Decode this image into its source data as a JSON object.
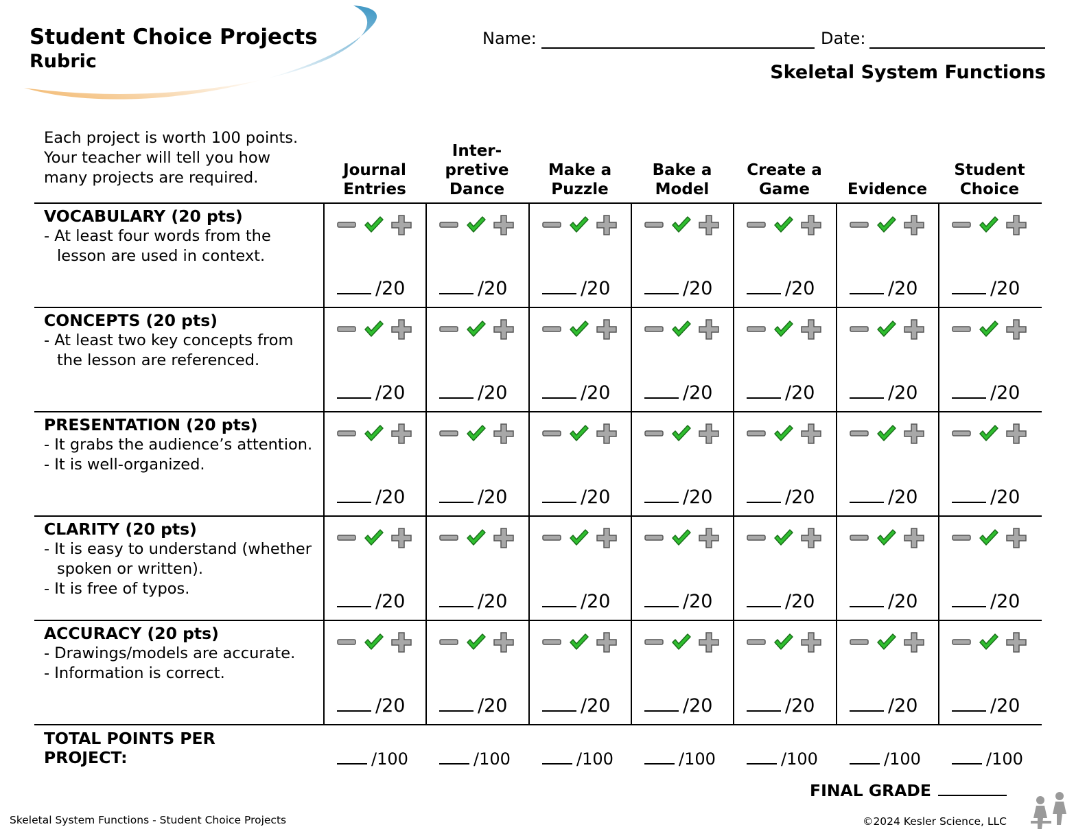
{
  "header": {
    "title": "Student Choice Projects",
    "subtitle": "Rubric",
    "name_label": "Name:",
    "date_label": "Date:",
    "topic": "Skeletal System Functions"
  },
  "instructions": "Each project is worth 100 points. Your teacher will tell you how many projects are required.",
  "columns": [
    "Journal\nEntries",
    "Inter-\npretive\nDance",
    "Make a\nPuzzle",
    "Bake a\nModel",
    "Create a\nGame",
    "Evidence",
    "Student\nChoice"
  ],
  "criteria": [
    {
      "title": "VOCABULARY (20 pts)",
      "lines": [
        "- At least four words from the lesson are used in context."
      ]
    },
    {
      "title": "CONCEPTS (20 pts)",
      "lines": [
        "- At least two key concepts from the lesson are referenced."
      ]
    },
    {
      "title": "PRESENTATION (20 pts)",
      "lines": [
        "-  It grabs the audience’s attention.",
        "-  It is well-organized."
      ]
    },
    {
      "title": "CLARITY (20 pts)",
      "lines": [
        "- It is easy to understand (whether spoken or written).",
        "- It is free of typos."
      ]
    },
    {
      "title": "ACCURACY (20 pts)",
      "lines": [
        "- Drawings/models are accurate.",
        "- Information is correct."
      ]
    }
  ],
  "cell_score": "/20",
  "marks": [
    "minus-icon",
    "check-icon",
    "plus-icon"
  ],
  "total_label": "TOTAL POINTS PER\nPROJECT:",
  "total_score": "/100",
  "final_grade_label": "FINAL GRADE",
  "footer": {
    "left": "Skeletal System Functions - Student Choice Projects",
    "right": "©2024  Kesler Science, LLC"
  },
  "colors": {
    "check": "#2fbe2f",
    "mark_gray": "#a8a8a8",
    "swoosh_blue": "#4a9cc6",
    "swoosh_orange": "#f2b66a"
  }
}
